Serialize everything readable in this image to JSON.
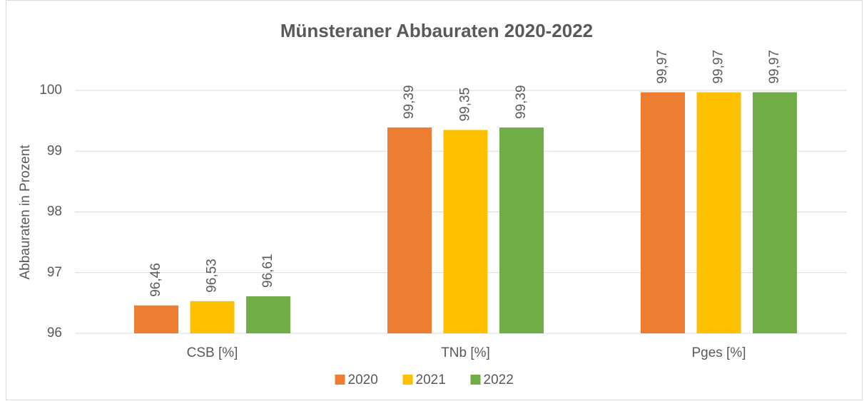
{
  "chart_data": {
    "type": "bar",
    "title": "Münsteraner Abbauraten 2020-2022",
    "y_label": "Abbauraten in Prozent",
    "categories": [
      "CSB [%]",
      "TNb [%]",
      "Pges [%]"
    ],
    "series": [
      {
        "name": "2020",
        "color": "#ed7d31",
        "values": [
          96.46,
          99.39,
          99.97
        ],
        "value_labels": [
          "96,46",
          "99,39",
          "99,97"
        ]
      },
      {
        "name": "2021",
        "color": "#ffc000",
        "values": [
          96.53,
          99.35,
          99.97
        ],
        "value_labels": [
          "96,53",
          "99,35",
          "99,97"
        ]
      },
      {
        "name": "2022",
        "color": "#70ad47",
        "values": [
          96.61,
          99.39,
          99.97
        ],
        "value_labels": [
          "96,61",
          "99,39",
          "99,97"
        ]
      }
    ],
    "ylim": [
      96,
      100
    ],
    "yticks": [
      96,
      97,
      98,
      99,
      100
    ],
    "grid": true,
    "legend": "bottom"
  }
}
